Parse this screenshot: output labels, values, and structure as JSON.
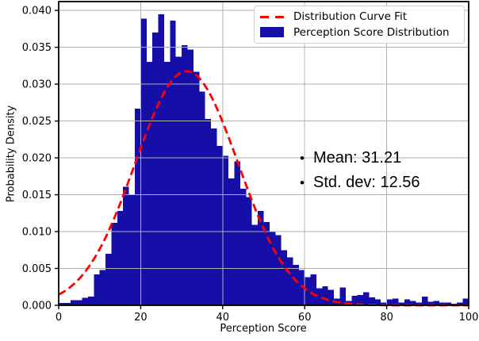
{
  "chart_data": {
    "type": "bar",
    "subtype": "histogram_with_normal_fit",
    "title": "",
    "xlabel": "Perception Score",
    "ylabel": "Probability Density",
    "xlim": [
      0,
      100
    ],
    "ylim": [
      0,
      0.0412
    ],
    "x_ticks": [
      0,
      20,
      40,
      60,
      80,
      100
    ],
    "x_tick_labels": [
      "0",
      "20",
      "40",
      "60",
      "80",
      "100"
    ],
    "y_ticks": [
      0.0,
      0.005,
      0.01,
      0.015,
      0.02,
      0.025,
      0.03,
      0.035,
      0.04
    ],
    "y_tick_labels": [
      "0.000",
      "0.005",
      "0.010",
      "0.015",
      "0.020",
      "0.025",
      "0.030",
      "0.035",
      "0.040"
    ],
    "grid": true,
    "grid_color": "#b0b0b0",
    "bar_color": "#150FA8",
    "curve_color": "#FF0000",
    "spine_color": "#000000",
    "bins": {
      "start": 0,
      "width": 1.4286,
      "heights": [
        0.0003,
        0.0003,
        0.0007,
        0.0007,
        0.001,
        0.0012,
        0.0042,
        0.0048,
        0.007,
        0.0112,
        0.0128,
        0.0161,
        0.015,
        0.0267,
        0.0389,
        0.033,
        0.037,
        0.0395,
        0.033,
        0.0386,
        0.0337,
        0.0353,
        0.0347,
        0.0317,
        0.029,
        0.0253,
        0.024,
        0.0216,
        0.0203,
        0.0172,
        0.0195,
        0.0158,
        0.0147,
        0.0109,
        0.0128,
        0.0113,
        0.01,
        0.0095,
        0.0075,
        0.0065,
        0.0055,
        0.0048,
        0.0038,
        0.0042,
        0.0023,
        0.0026,
        0.0021,
        0.0009,
        0.0024,
        0.0006,
        0.0013,
        0.0014,
        0.0018,
        0.0011,
        0.0008,
        0.0004,
        0.0008,
        0.0009,
        0.0004,
        0.0008,
        0.0006,
        0.0004,
        0.0012,
        0.0005,
        0.0006,
        0.0004,
        0.0004,
        0.0002,
        0.0004,
        0.0009
      ]
    },
    "fit_curve": {
      "type": "normal",
      "mean": 31.21,
      "std": 12.56,
      "peak_density": 0.0318
    },
    "legend": {
      "position": "upper right",
      "entries": [
        {
          "label": "Distribution Curve Fit",
          "style": "dashed-line",
          "color": "#FF0000"
        },
        {
          "label": "Perception Score Distribution",
          "style": "filled-box",
          "color": "#150FA8"
        }
      ]
    },
    "annotation": {
      "lines": [
        {
          "bullet": "•",
          "text": "Mean: 31.21"
        },
        {
          "bullet": "•",
          "text": "Std. dev: 12.56"
        }
      ]
    }
  }
}
